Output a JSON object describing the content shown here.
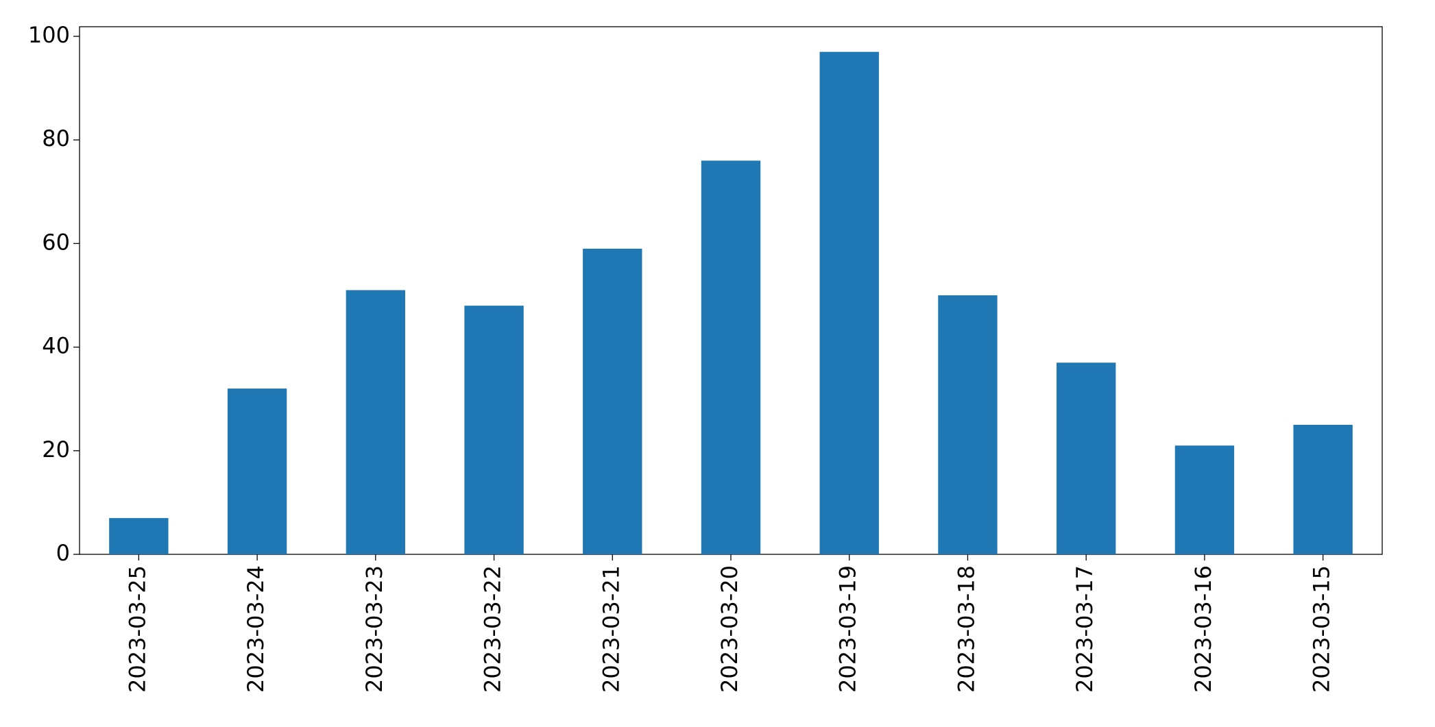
{
  "chart_data": {
    "type": "bar",
    "categories": [
      "2023-03-25",
      "2023-03-24",
      "2023-03-23",
      "2023-03-22",
      "2023-03-21",
      "2023-03-20",
      "2023-03-19",
      "2023-03-18",
      "2023-03-17",
      "2023-03-16",
      "2023-03-15"
    ],
    "values": [
      7,
      32,
      51,
      48,
      59,
      76,
      97,
      50,
      37,
      21,
      25
    ],
    "color": "#1f77b4",
    "ylim": [
      0,
      101.85
    ],
    "yticks": [
      0,
      20,
      40,
      60,
      80,
      100
    ],
    "grid": false
  }
}
